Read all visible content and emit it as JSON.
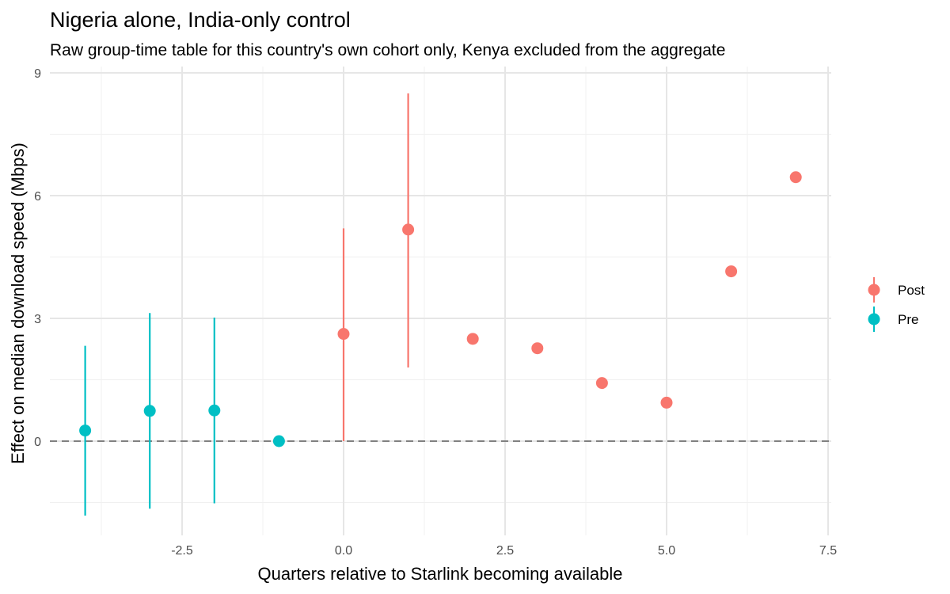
{
  "chart_data": {
    "type": "scatter",
    "title": "Nigeria alone, India-only control",
    "subtitle": "Raw group-time table for this country's own cohort only, Kenya excluded from the aggregate",
    "xlabel": "Quarters relative to Starlink becoming available",
    "ylabel": "Effect on median download speed (Mbps)",
    "xlim": [
      -4.4,
      7.5
    ],
    "ylim": [
      -2.3,
      9
    ],
    "x_ticks": [
      -2.5,
      0,
      2.5,
      5,
      7.5
    ],
    "x_tick_labels": [
      "-2.5",
      "0.0",
      "2.5",
      "5.0",
      "7.5"
    ],
    "y_ticks": [
      0,
      3,
      6,
      9
    ],
    "y_tick_labels": [
      "0",
      "3",
      "6",
      "9"
    ],
    "reference_line_y": 0,
    "grid": true,
    "legend_position": "right",
    "series": [
      {
        "name": "Post",
        "color": "#F8766D",
        "points": [
          {
            "x": 0,
            "y": 2.62,
            "lo": 0.0,
            "hi": 5.2
          },
          {
            "x": 1,
            "y": 5.17,
            "lo": 1.8,
            "hi": 8.5
          },
          {
            "x": 2,
            "y": 2.5
          },
          {
            "x": 3,
            "y": 2.27
          },
          {
            "x": 4,
            "y": 1.42
          },
          {
            "x": 5,
            "y": 0.94
          },
          {
            "x": 6,
            "y": 4.15
          },
          {
            "x": 7,
            "y": 6.45
          }
        ]
      },
      {
        "name": "Pre",
        "color": "#00BFC4",
        "points": [
          {
            "x": -4,
            "y": 0.26,
            "lo": -1.82,
            "hi": 2.33
          },
          {
            "x": -3,
            "y": 0.74,
            "lo": -1.65,
            "hi": 3.13
          },
          {
            "x": -2,
            "y": 0.75,
            "lo": -1.52,
            "hi": 3.02
          },
          {
            "x": -1,
            "y": 0.0
          }
        ]
      }
    ]
  }
}
